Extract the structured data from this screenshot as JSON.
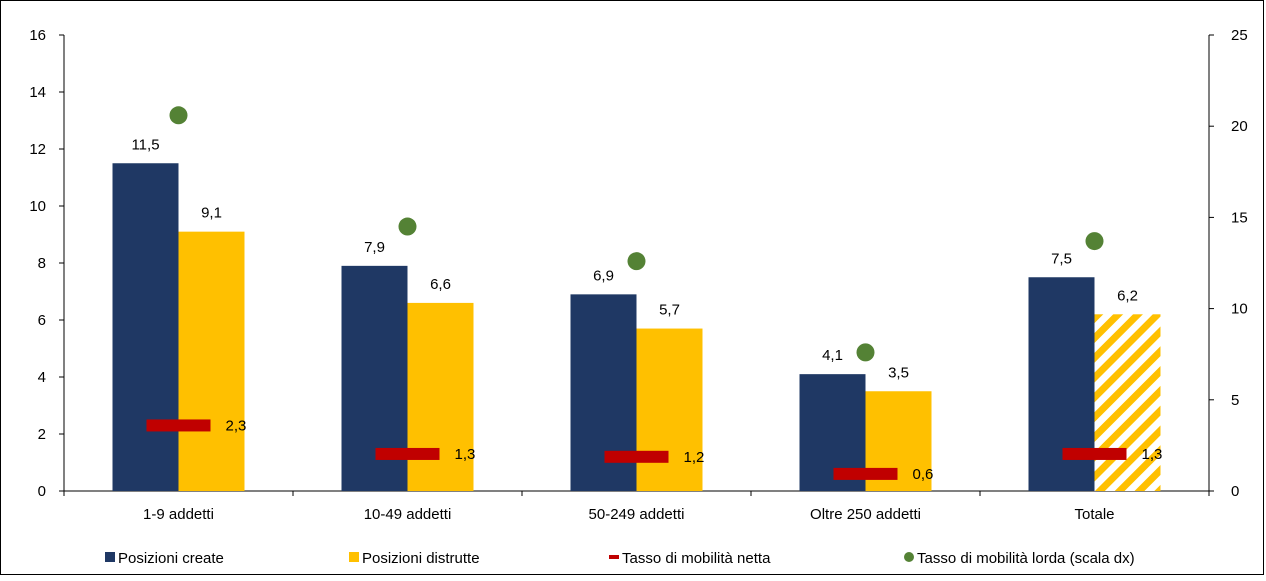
{
  "chart_data": {
    "type": "bar",
    "categories": [
      "1-9 addetti",
      "10-49 addetti",
      "50-249 addetti",
      "Oltre 250 addetti",
      "Totale"
    ],
    "series": [
      {
        "name": "Posizioni create",
        "kind": "bar",
        "axis": "left",
        "color": "#1f3864",
        "values": [
          11.5,
          7.9,
          6.9,
          4.1,
          7.5
        ],
        "labels": [
          "11,5",
          "7,9",
          "6,9",
          "4,1",
          "7,5"
        ]
      },
      {
        "name": "Posizioni distrutte",
        "kind": "bar",
        "axis": "left",
        "color": "#ffc000",
        "values": [
          9.1,
          6.6,
          5.7,
          3.5,
          6.2
        ],
        "labels": [
          "9,1",
          "6,6",
          "5,7",
          "3,5",
          "6,2"
        ],
        "hatched_last": true
      },
      {
        "name": "Tasso di mobilità netta",
        "kind": "dash",
        "axis": "left",
        "color": "#c00000",
        "values": [
          2.3,
          1.3,
          1.2,
          0.6,
          1.3
        ],
        "labels": [
          "2,3",
          "1,3",
          "1,2",
          "0,6",
          "1,3"
        ]
      },
      {
        "name": "Tasso di mobilità lorda (scala dx)",
        "kind": "dot",
        "axis": "right",
        "color": "#548235",
        "values": [
          20.6,
          14.5,
          12.6,
          7.6,
          13.7
        ]
      }
    ],
    "y_left": {
      "min": 0,
      "max": 16,
      "ticks": [
        0,
        2,
        4,
        6,
        8,
        10,
        12,
        14,
        16
      ]
    },
    "y_right": {
      "min": 0,
      "max": 25,
      "ticks": [
        0,
        5,
        10,
        15,
        20,
        25
      ]
    },
    "legend_position": "bottom",
    "grid": false
  }
}
